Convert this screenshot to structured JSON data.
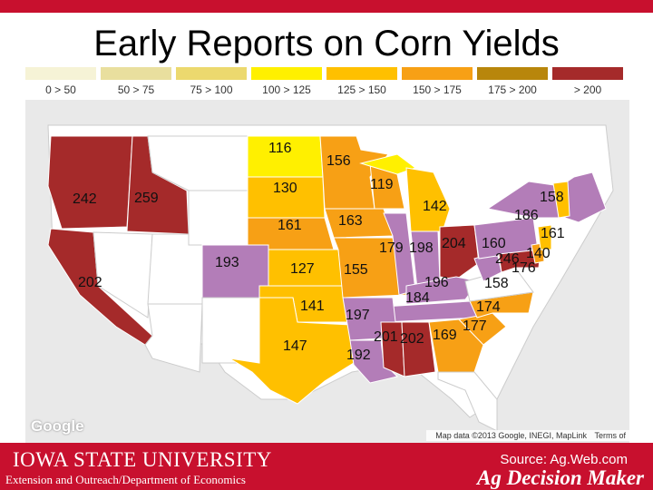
{
  "title": "Early Reports on Corn Yields",
  "legend": {
    "items": [
      {
        "label": "0 > 50",
        "color": "#f6f3d6"
      },
      {
        "label": "50 > 75",
        "color": "#e9df9e"
      },
      {
        "label": "75 > 100",
        "color": "#ecd96e"
      },
      {
        "label": "100 > 125",
        "color": "#fff000"
      },
      {
        "label": "125 > 150",
        "color": "#ffc000"
      },
      {
        "label": "150 > 175",
        "color": "#f7a015"
      },
      {
        "label": "175 > 200",
        "color": "#b8860b"
      },
      {
        "label": "> 200",
        "color": "#a52a2a"
      }
    ]
  },
  "colors": {
    "state_default": "#ffffff",
    "ocean": "#e9e9e9",
    "purple": "#b37db8",
    "dark_red": "#a52a2a",
    "orange": "#f7a015",
    "gold": "#ffc000",
    "yellow": "#fff000",
    "brand_red": "#c8102e"
  },
  "states": [
    {
      "label": "116"
    },
    {
      "label": "156"
    },
    {
      "label": "130"
    },
    {
      "label": "119"
    },
    {
      "label": "142"
    },
    {
      "label": "242"
    },
    {
      "label": "259"
    },
    {
      "label": "161"
    },
    {
      "label": "163"
    },
    {
      "label": "193"
    },
    {
      "label": "127"
    },
    {
      "label": "155"
    },
    {
      "label": "179"
    },
    {
      "label": "198"
    },
    {
      "label": "204"
    },
    {
      "label": "160"
    },
    {
      "label": "158"
    },
    {
      "label": "186"
    },
    {
      "label": "161"
    },
    {
      "label": "246"
    },
    {
      "label": "140"
    },
    {
      "label": "176"
    },
    {
      "label": "202"
    },
    {
      "label": "196"
    },
    {
      "label": "158"
    },
    {
      "label": "184"
    },
    {
      "label": "174"
    },
    {
      "label": "141"
    },
    {
      "label": "197"
    },
    {
      "label": "177"
    },
    {
      "label": "201"
    },
    {
      "label": "202"
    },
    {
      "label": "169"
    },
    {
      "label": "147"
    },
    {
      "label": "192"
    }
  ],
  "map": {
    "google_logo": "Google",
    "attribution": "Map data ©2013 Google, INEGI, MapLink",
    "terms": "Terms of"
  },
  "footer": {
    "university": "IOWA STATE UNIVERSITY",
    "department": "Extension and Outreach/Department of Economics",
    "source": "Source: Ag.Web.com",
    "brand": "Ag Decision Maker"
  }
}
